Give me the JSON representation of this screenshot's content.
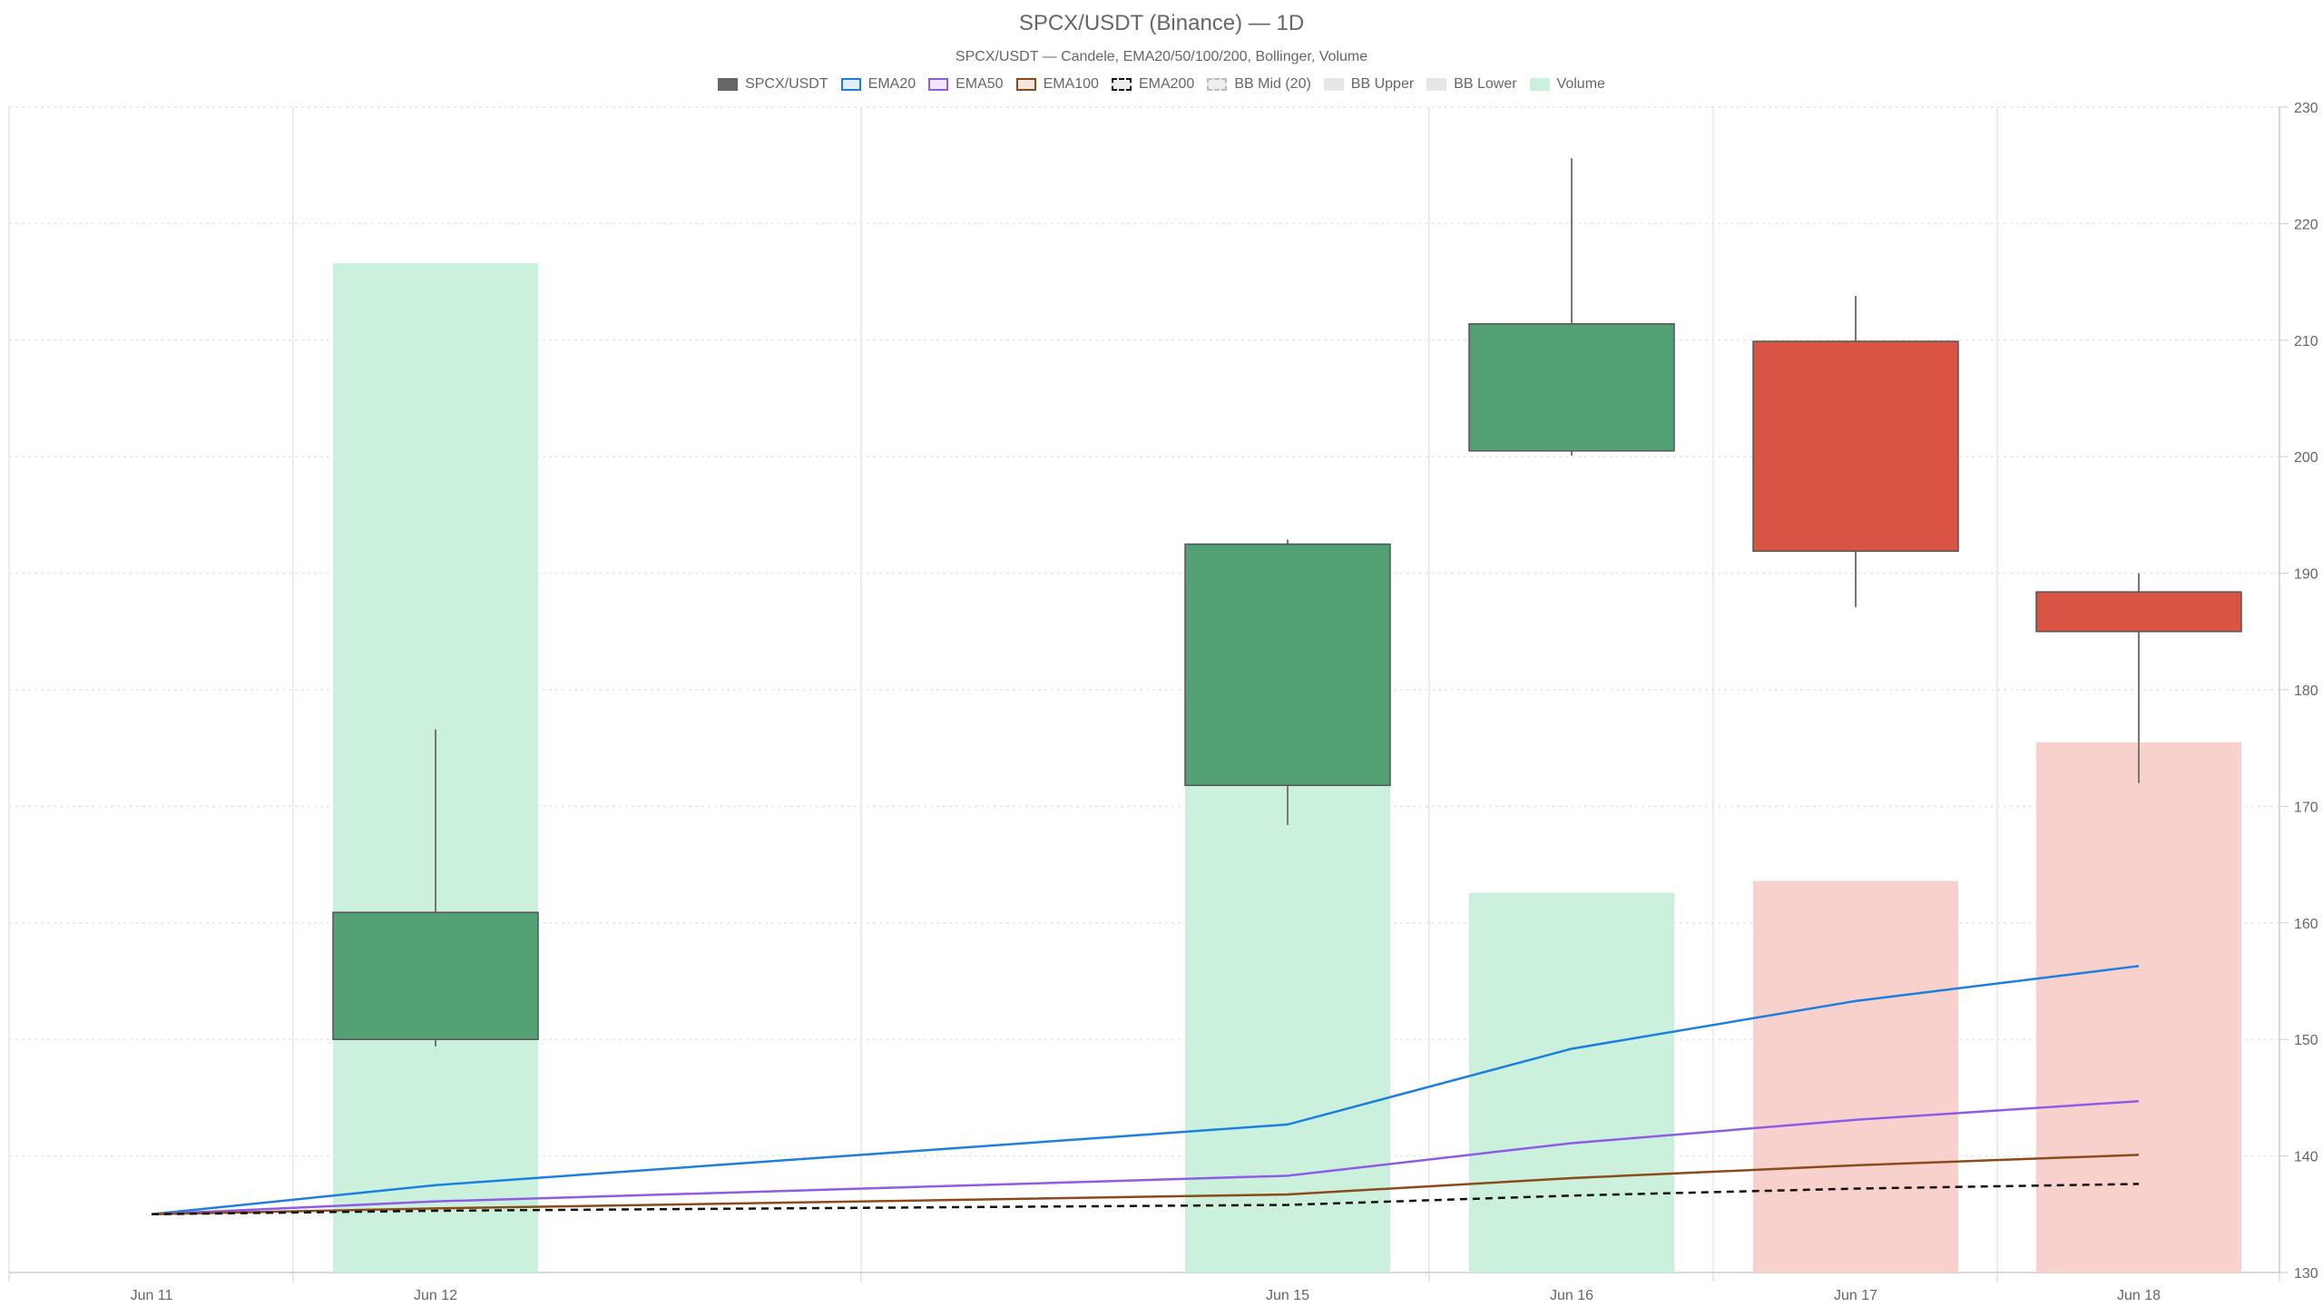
{
  "chart_data": {
    "type": "candlestick",
    "title": "SPCX/USDT (Binance) — 1D",
    "subtitle": "SPCX/USDT — Candele, EMA20/50/100/200, Bollinger, Volume",
    "legend": [
      {
        "label": "SPCX/USDT",
        "fill": "#666666",
        "border": "#666666",
        "dashed": false
      },
      {
        "label": "EMA20",
        "fill": "#e3eef8",
        "border": "#1a7fe0",
        "dashed": false
      },
      {
        "label": "EMA50",
        "fill": "#eee8f8",
        "border": "#8e5be8",
        "dashed": false
      },
      {
        "label": "EMA100",
        "fill": "#f2e8df",
        "border": "#8b4a1c",
        "dashed": false
      },
      {
        "label": "EMA200",
        "fill": "#eeeeee",
        "border": "#111111",
        "dashed": true
      },
      {
        "label": "BB Mid (20)",
        "fill": "#eeeeee",
        "border": "#bbbbbb",
        "dashed": true
      },
      {
        "label": "BB Upper",
        "fill": "#e6e6e6",
        "border": "#e6e6e6",
        "dashed": false
      },
      {
        "label": "BB Lower",
        "fill": "#e6e6e6",
        "border": "#e6e6e6",
        "dashed": false
      },
      {
        "label": "Volume",
        "fill": "#cbf1dc",
        "border": "#cbf1dc",
        "dashed": false
      }
    ],
    "x_ticks": [
      "Jun 11",
      "Jun 12",
      "Jun 15",
      "Jun 16",
      "Jun 17",
      "Jun 18"
    ],
    "y_ticks": [
      130,
      140,
      150,
      160,
      170,
      180,
      190,
      200,
      210,
      220,
      230
    ],
    "ylim": [
      130,
      230
    ],
    "candles": [
      {
        "date": "Jun 12",
        "open": 150.0,
        "high": 176.6,
        "low": 149.4,
        "close": 160.9
      },
      {
        "date": "Jun 15",
        "open": 171.8,
        "high": 192.9,
        "low": 168.4,
        "close": 192.5
      },
      {
        "date": "Jun 16",
        "open": 200.5,
        "high": 225.6,
        "low": 200.1,
        "close": 211.4
      },
      {
        "date": "Jun 17",
        "open": 209.9,
        "high": 213.8,
        "low": 187.1,
        "close": 191.9
      },
      {
        "date": "Jun 18",
        "open": 188.4,
        "high": 190.0,
        "low": 172.0,
        "close": 185.0
      }
    ],
    "volume": [
      {
        "date": "Jun 12",
        "value": 216.6,
        "direction": "up"
      },
      {
        "date": "Jun 15",
        "value": 171.8,
        "direction": "up"
      },
      {
        "date": "Jun 16",
        "value": 162.6,
        "direction": "up"
      },
      {
        "date": "Jun 17",
        "value": 163.6,
        "direction": "down"
      },
      {
        "date": "Jun 18",
        "value": 175.5,
        "direction": "down"
      }
    ],
    "ema": [
      {
        "name": "EMA20",
        "color": "#1a7fe0",
        "dashed": false,
        "points": [
          [
            "Jun 11",
            135.0
          ],
          [
            "Jun 12",
            137.5
          ],
          [
            "Jun 15",
            142.7
          ],
          [
            "Jun 16",
            149.2
          ],
          [
            "Jun 17",
            153.3
          ],
          [
            "Jun 18",
            156.3
          ]
        ]
      },
      {
        "name": "EMA50",
        "color": "#8e5be8",
        "dashed": false,
        "points": [
          [
            "Jun 11",
            135.0
          ],
          [
            "Jun 12",
            136.1
          ],
          [
            "Jun 15",
            138.3
          ],
          [
            "Jun 16",
            141.1
          ],
          [
            "Jun 17",
            143.1
          ],
          [
            "Jun 18",
            144.7
          ]
        ]
      },
      {
        "name": "EMA100",
        "color": "#8b4a1c",
        "dashed": false,
        "points": [
          [
            "Jun 11",
            135.0
          ],
          [
            "Jun 12",
            135.5
          ],
          [
            "Jun 15",
            136.7
          ],
          [
            "Jun 16",
            138.1
          ],
          [
            "Jun 17",
            139.2
          ],
          [
            "Jun 18",
            140.1
          ]
        ]
      },
      {
        "name": "EMA200",
        "color": "#111111",
        "dashed": true,
        "points": [
          [
            "Jun 11",
            135.0
          ],
          [
            "Jun 12",
            135.3
          ],
          [
            "Jun 15",
            135.8
          ],
          [
            "Jun 16",
            136.6
          ],
          [
            "Jun 17",
            137.2
          ],
          [
            "Jun 18",
            137.6
          ]
        ]
      }
    ],
    "colors": {
      "up": "#52a073",
      "down": "#d95442",
      "candle_border": "#555555",
      "wick": "#777777",
      "volume_up": "#cbf1dc",
      "volume_down": "#f8d1cc",
      "grid": "#e6e6e6",
      "tick_text": "#666666"
    },
    "legend_position": "top",
    "grid": true
  }
}
